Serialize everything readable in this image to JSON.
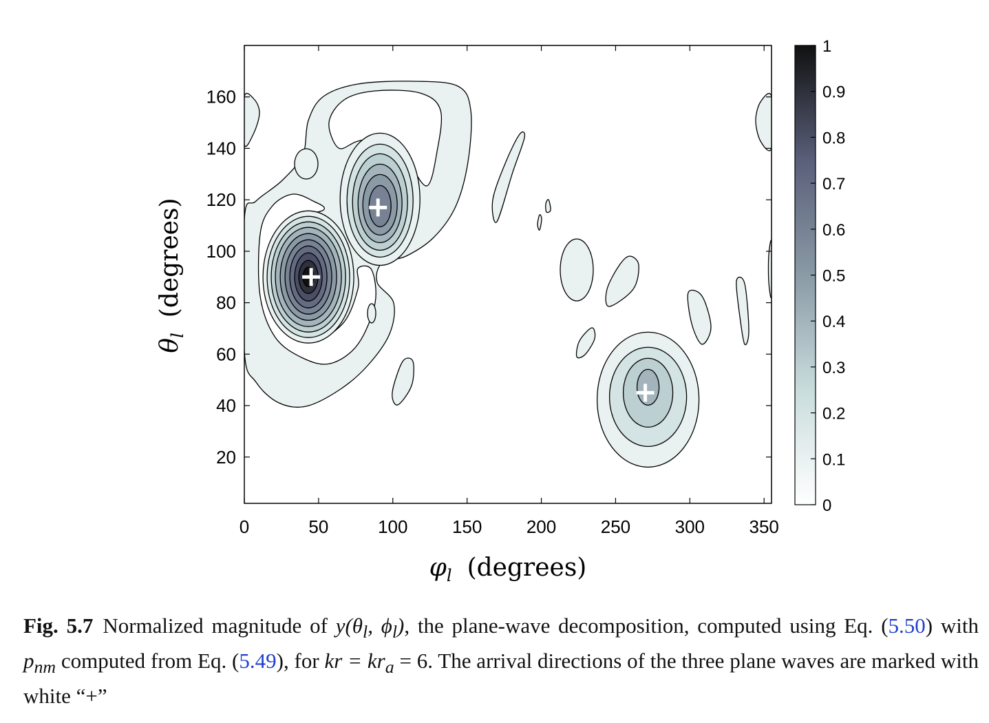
{
  "chart_data": {
    "type": "heatmap",
    "subtype": "filled-contour",
    "xlabel_symbol": "φ",
    "xlabel_sub": "l",
    "xlabel_unit": "(degrees)",
    "ylabel_symbol": "θ",
    "ylabel_sub": "l",
    "ylabel_unit": "(degrees)",
    "xlim": [
      0,
      355
    ],
    "ylim": [
      2,
      180
    ],
    "xticks": [
      0,
      50,
      100,
      150,
      200,
      250,
      300,
      350
    ],
    "yticks": [
      20,
      40,
      60,
      80,
      100,
      120,
      140,
      160
    ],
    "colorbar": {
      "range": [
        0,
        1
      ],
      "ticks": [
        "0",
        "0.1",
        "0.2",
        "0.3",
        "0.4",
        "0.5",
        "0.6",
        "0.7",
        "0.8",
        "0.9",
        "1"
      ],
      "colormap": "bone (reversed)",
      "colors": {
        "low": "#ffffff",
        "mid": "#c9dcdc",
        "midhigh": "#6f7b8f",
        "high": "#111111"
      }
    },
    "contour_levels": [
      0.1,
      0.2,
      0.3,
      0.4,
      0.5,
      0.6,
      0.7,
      0.8,
      0.9
    ],
    "peaks": [
      {
        "phi": 45,
        "theta": 90,
        "value": 1.0
      },
      {
        "phi": 90,
        "theta": 117,
        "value": 0.6
      },
      {
        "phi": 270,
        "theta": 45,
        "value": 0.4
      }
    ],
    "markers": [
      {
        "phi": 45,
        "theta": 90,
        "symbol": "+",
        "color": "#ffffff"
      },
      {
        "phi": 90,
        "theta": 117,
        "symbol": "+",
        "color": "#ffffff"
      },
      {
        "phi": 270,
        "theta": 45,
        "symbol": "+",
        "color": "#ffffff"
      }
    ]
  },
  "caption": {
    "fig_label": "Fig. 5.7",
    "seg1": "Normalized magnitude of ",
    "math1": "y(θ",
    "math1_sub": "l",
    "math1b": ", ϕ",
    "math1b_sub": "l",
    "math1c": ")",
    "seg2": ", the plane-wave decomposition, computed using Eq. (",
    "ref1": "5.50",
    "seg3": ") with ",
    "math2": "p",
    "math2_sub": "nm",
    "seg4": " computed from Eq. (",
    "ref2": "5.49",
    "seg5": "), for ",
    "math3": "kr = kr",
    "math3_sub": "a",
    "seg6": " = 6. The arrival directions of the three plane waves are marked with white “+”"
  }
}
